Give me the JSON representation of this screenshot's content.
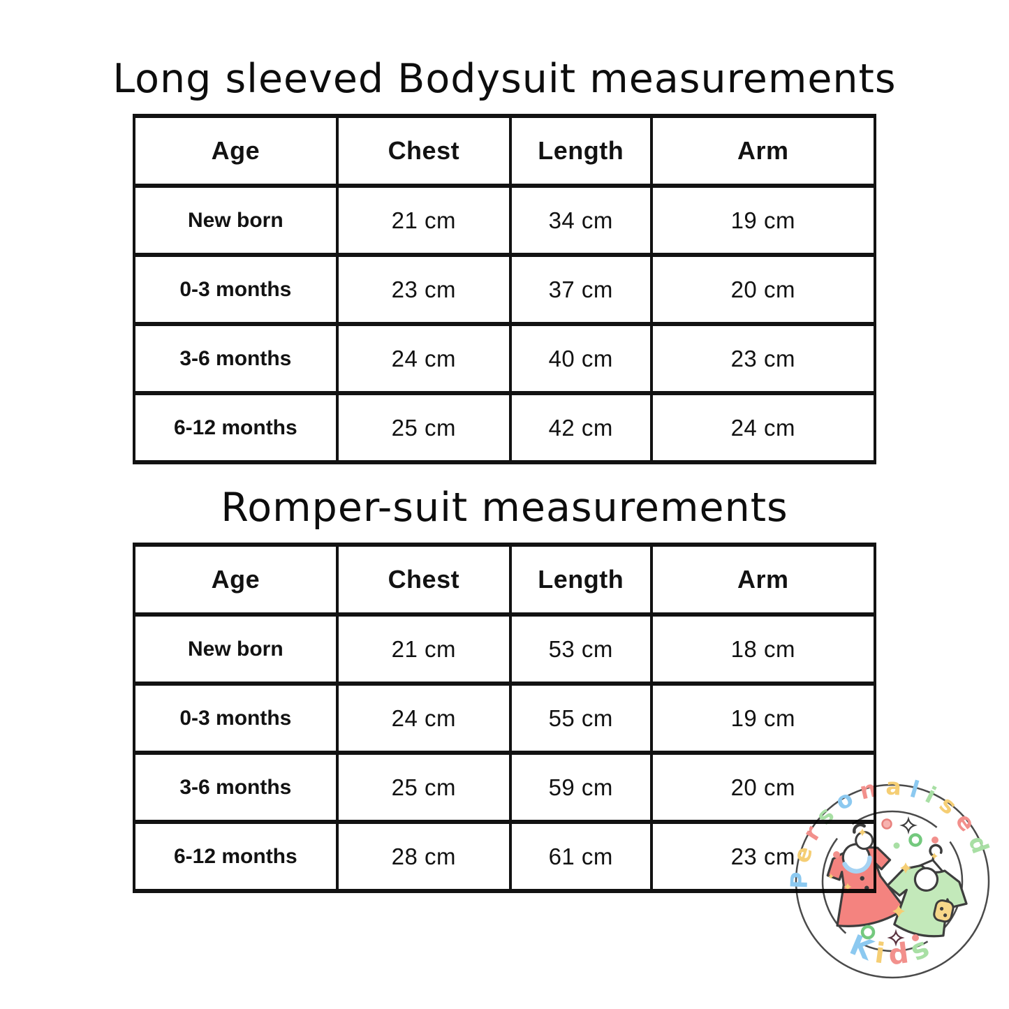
{
  "page": {
    "background_color": "#ffffff",
    "text_color": "#121212"
  },
  "tables": [
    {
      "title": "Long sleeved Bodysuit measurements",
      "columns": [
        "Age",
        "Chest",
        "Length",
        "Arm"
      ],
      "rows": [
        [
          "New born",
          "21 cm",
          "34 cm",
          "19 cm"
        ],
        [
          "0-3 months",
          "23 cm",
          "37 cm",
          "20 cm"
        ],
        [
          "3-6 months",
          "24 cm",
          "40 cm",
          "23 cm"
        ],
        [
          "6-12 months",
          "25 cm",
          "42 cm",
          "24 cm"
        ]
      ]
    },
    {
      "title": "Romper-suit measurements",
      "columns": [
        "Age",
        "Chest",
        "Length",
        "Arm"
      ],
      "rows": [
        [
          "New born",
          "21 cm",
          "53 cm",
          "18 cm"
        ],
        [
          "0-3 months",
          "24 cm",
          "55 cm",
          "19 cm"
        ],
        [
          "3-6 months",
          "25 cm",
          "59 cm",
          "20 cm"
        ],
        [
          "6-12 months",
          "28 cm",
          "61 cm",
          "23 cm"
        ]
      ]
    }
  ],
  "logo": {
    "top_text": "Personalised",
    "bottom_text": "Kids",
    "top_letter_colors": [
      "#8CC9F0",
      "#F5CE74",
      "#F2908C",
      "#A8DFA4",
      "#8CC9F0",
      "#F2908C",
      "#F5CE74",
      "#8CC9F0",
      "#A8DFA4",
      "#F5CE74",
      "#F2908C",
      "#A8DFA4"
    ],
    "bottom_letter_colors": [
      "#8CC9F0",
      "#F5CE74",
      "#F2908C",
      "#A8DFA4"
    ],
    "colors": {
      "dress": "#F4837F",
      "tshirt": "#C3E9BA",
      "collar": "#A6D3F3",
      "pocket": "#F7D78A",
      "outline": "#3D3D3D",
      "ring": "#4A4A4A",
      "blue": "#8CC9F0",
      "yellow": "#F5CE74",
      "coral": "#F2908C",
      "green": "#A8DFA4"
    }
  }
}
